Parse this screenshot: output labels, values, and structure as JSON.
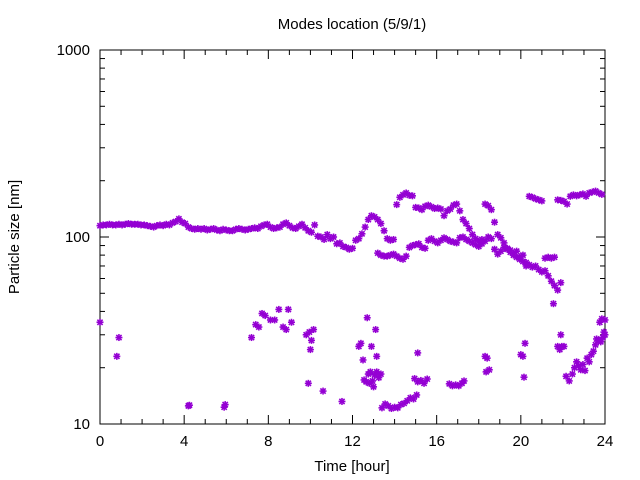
{
  "chart_data": {
    "type": "scatter",
    "title": "Modes location (5/9/1)",
    "xlabel": "Time [hour]",
    "ylabel": "Particle size [nm]",
    "xlim": [
      0,
      24
    ],
    "ylim": [
      10,
      1000
    ],
    "yscale": "log",
    "xticks": [
      0,
      4,
      8,
      12,
      16,
      20,
      24
    ],
    "yticks": [
      10,
      100,
      1000
    ],
    "grid": false,
    "marker_color": "#9400d3",
    "marker": "asterisk",
    "series": [
      {
        "points": [
          [
            0.0,
            115
          ],
          [
            0.15,
            116
          ],
          [
            0.3,
            116
          ],
          [
            0.45,
            117
          ],
          [
            0.6,
            116
          ],
          [
            0.75,
            116
          ],
          [
            0.9,
            117
          ],
          [
            1.05,
            116
          ],
          [
            1.2,
            117
          ],
          [
            1.35,
            118
          ],
          [
            1.5,
            117
          ],
          [
            1.65,
            117
          ],
          [
            1.8,
            117
          ],
          [
            1.95,
            116
          ],
          [
            2.1,
            116
          ],
          [
            2.25,
            115
          ],
          [
            2.4,
            114
          ],
          [
            2.55,
            113
          ],
          [
            2.7,
            115
          ],
          [
            2.85,
            116
          ],
          [
            3.0,
            115
          ],
          [
            3.15,
            117
          ],
          [
            3.3,
            116
          ],
          [
            3.45,
            119
          ],
          [
            3.6,
            121
          ],
          [
            3.75,
            125
          ],
          [
            3.9,
            120
          ],
          [
            4.05,
            118
          ],
          [
            4.2,
            113
          ],
          [
            4.35,
            111
          ],
          [
            4.5,
            110
          ],
          [
            4.65,
            111
          ],
          [
            4.8,
            110
          ],
          [
            4.95,
            111
          ],
          [
            5.1,
            109
          ],
          [
            5.25,
            110
          ],
          [
            5.4,
            111
          ],
          [
            5.55,
            109
          ],
          [
            5.7,
            108
          ],
          [
            5.85,
            110
          ],
          [
            6.0,
            109
          ],
          [
            6.15,
            108
          ],
          [
            6.3,
            108
          ],
          [
            6.45,
            110
          ],
          [
            6.6,
            111
          ],
          [
            6.75,
            110
          ],
          [
            6.9,
            109
          ],
          [
            7.05,
            110
          ],
          [
            7.2,
            111
          ],
          [
            7.35,
            112
          ],
          [
            7.5,
            111
          ],
          [
            7.65,
            114
          ],
          [
            7.8,
            116
          ],
          [
            7.95,
            117
          ],
          [
            8.1,
            113
          ],
          [
            8.25,
            111
          ],
          [
            8.4,
            112
          ],
          [
            8.55,
            113
          ],
          [
            8.7,
            117
          ],
          [
            8.85,
            119
          ],
          [
            9.0,
            115
          ],
          [
            9.15,
            112
          ],
          [
            9.3,
            111
          ],
          [
            9.45,
            114
          ],
          [
            9.6,
            117
          ],
          [
            9.75,
            112
          ],
          [
            9.9,
            108
          ],
          [
            10.05,
            106
          ],
          [
            10.2,
            116
          ],
          [
            10.35,
            101
          ],
          [
            10.5,
            100
          ],
          [
            10.65,
            97
          ],
          [
            10.8,
            103
          ],
          [
            10.95,
            98
          ],
          [
            11.1,
            100
          ],
          [
            11.25,
            92
          ],
          [
            11.4,
            93
          ],
          [
            11.55,
            89
          ],
          [
            11.7,
            88
          ],
          [
            11.85,
            86
          ],
          [
            12.0,
            87
          ],
          [
            12.15,
            96
          ],
          [
            12.3,
            98
          ],
          [
            12.45,
            104
          ],
          [
            12.6,
            113
          ],
          [
            12.75,
            124
          ],
          [
            12.9,
            130
          ],
          [
            13.05,
            128
          ],
          [
            13.2,
            124
          ],
          [
            13.35,
            118
          ],
          [
            13.5,
            108
          ],
          [
            13.65,
            98
          ],
          [
            13.8,
            96
          ],
          [
            13.95,
            97
          ],
          [
            14.1,
            149
          ],
          [
            14.25,
            163
          ],
          [
            14.4,
            168
          ],
          [
            14.55,
            172
          ],
          [
            14.7,
            167
          ],
          [
            14.85,
            166
          ],
          [
            15.0,
            144
          ],
          [
            15.15,
            143
          ],
          [
            15.3,
            140
          ],
          [
            15.45,
            146
          ],
          [
            15.6,
            148
          ],
          [
            15.75,
            145
          ],
          [
            15.9,
            142
          ],
          [
            16.05,
            143
          ],
          [
            16.2,
            141
          ],
          [
            16.35,
            130
          ],
          [
            16.5,
            138
          ],
          [
            16.65,
            141
          ],
          [
            16.8,
            148
          ],
          [
            16.95,
            150
          ],
          [
            17.1,
            138
          ],
          [
            17.25,
            124
          ],
          [
            17.4,
            118
          ],
          [
            17.55,
            111
          ],
          [
            17.7,
            103
          ],
          [
            17.85,
            98
          ],
          [
            18.0,
            95
          ],
          [
            18.15,
            97
          ],
          [
            18.3,
            150
          ],
          [
            18.45,
            147
          ],
          [
            18.6,
            140
          ],
          [
            18.75,
            120
          ],
          [
            18.9,
            103
          ],
          [
            19.05,
            99
          ],
          [
            19.2,
            93
          ],
          [
            19.35,
            86
          ],
          [
            19.5,
            83
          ],
          [
            19.65,
            82
          ],
          [
            19.8,
            84
          ],
          [
            19.95,
            78
          ],
          [
            20.1,
            74
          ],
          [
            20.25,
            70
          ],
          [
            20.4,
            165
          ],
          [
            20.55,
            163
          ],
          [
            20.7,
            160
          ],
          [
            20.85,
            158
          ],
          [
            21.0,
            156
          ],
          [
            21.15,
            77
          ],
          [
            21.3,
            78
          ],
          [
            21.45,
            77
          ],
          [
            21.6,
            78
          ],
          [
            21.75,
            158
          ],
          [
            21.9,
            157
          ],
          [
            22.05,
            155
          ],
          [
            22.2,
            150
          ],
          [
            22.35,
            165
          ],
          [
            22.5,
            168
          ],
          [
            22.65,
            166
          ],
          [
            22.8,
            168
          ],
          [
            22.95,
            170
          ],
          [
            23.1,
            165
          ],
          [
            23.25,
            172
          ],
          [
            23.4,
            174
          ],
          [
            23.55,
            176
          ],
          [
            23.7,
            172
          ],
          [
            23.85,
            169
          ],
          [
            13.2,
            82
          ],
          [
            13.35,
            80
          ],
          [
            13.5,
            79
          ],
          [
            13.65,
            79
          ],
          [
            13.8,
            80
          ],
          [
            13.95,
            81
          ],
          [
            14.1,
            79
          ],
          [
            14.25,
            77
          ],
          [
            14.4,
            76
          ],
          [
            14.55,
            79
          ],
          [
            14.7,
            88
          ],
          [
            14.85,
            90
          ],
          [
            15.0,
            91
          ],
          [
            15.15,
            92
          ],
          [
            15.3,
            88
          ],
          [
            15.45,
            87
          ],
          [
            15.6,
            96
          ],
          [
            15.75,
            98
          ],
          [
            15.9,
            95
          ],
          [
            16.05,
            93
          ],
          [
            16.2,
            96
          ],
          [
            16.35,
            99
          ],
          [
            16.5,
            97
          ],
          [
            16.65,
            95
          ],
          [
            16.8,
            94
          ],
          [
            16.95,
            93
          ],
          [
            17.1,
            99
          ],
          [
            17.25,
            100
          ],
          [
            17.4,
            97
          ],
          [
            17.55,
            95
          ],
          [
            17.7,
            93
          ],
          [
            17.85,
            91
          ],
          [
            18.0,
            89
          ],
          [
            18.15,
            92
          ],
          [
            18.3,
            95
          ],
          [
            18.45,
            100
          ],
          [
            18.6,
            98
          ],
          [
            18.75,
            86
          ],
          [
            18.9,
            81
          ],
          [
            19.05,
            84
          ],
          [
            19.2,
            88
          ],
          [
            19.35,
            87
          ],
          [
            19.5,
            85
          ],
          [
            19.65,
            80
          ],
          [
            19.8,
            78
          ],
          [
            19.95,
            76
          ],
          [
            20.1,
            80
          ],
          [
            20.25,
            73
          ],
          [
            20.4,
            71
          ],
          [
            20.55,
            69
          ],
          [
            20.7,
            70
          ],
          [
            20.85,
            67
          ],
          [
            21.0,
            65
          ],
          [
            21.15,
            66
          ],
          [
            21.3,
            62
          ],
          [
            21.45,
            58
          ],
          [
            21.6,
            55
          ],
          [
            21.75,
            52
          ],
          [
            21.9,
            57
          ],
          [
            0.0,
            35
          ],
          [
            0.9,
            29
          ],
          [
            0.8,
            23
          ],
          [
            4.2,
            12.5
          ],
          [
            4.25,
            12.6
          ],
          [
            5.9,
            12.3
          ],
          [
            5.95,
            12.7
          ],
          [
            7.2,
            29
          ],
          [
            7.4,
            34
          ],
          [
            7.55,
            33
          ],
          [
            7.7,
            39
          ],
          [
            7.85,
            38
          ],
          [
            8.1,
            36
          ],
          [
            8.3,
            36
          ],
          [
            8.5,
            41
          ],
          [
            8.7,
            33
          ],
          [
            8.85,
            32
          ],
          [
            8.95,
            41
          ],
          [
            9.1,
            35
          ],
          [
            9.8,
            30
          ],
          [
            9.95,
            31
          ],
          [
            10.05,
            28
          ],
          [
            10.15,
            32
          ],
          [
            9.9,
            16.5
          ],
          [
            10.0,
            25
          ],
          [
            10.6,
            15
          ],
          [
            11.5,
            13.2
          ],
          [
            12.3,
            26
          ],
          [
            12.4,
            27
          ],
          [
            12.5,
            22
          ],
          [
            12.7,
            37
          ],
          [
            12.9,
            26
          ],
          [
            13.1,
            32
          ],
          [
            13.15,
            23
          ],
          [
            12.55,
            17.2
          ],
          [
            12.65,
            16.8
          ],
          [
            12.75,
            18.5
          ],
          [
            12.85,
            19
          ],
          [
            12.95,
            17
          ],
          [
            13.05,
            18.3
          ],
          [
            13.15,
            19
          ],
          [
            13.25,
            17.7
          ],
          [
            13.35,
            18.5
          ],
          [
            12.8,
            16.5
          ],
          [
            13.0,
            15.8
          ],
          [
            13.4,
            12.2
          ],
          [
            13.55,
            12.8
          ],
          [
            13.7,
            12.5
          ],
          [
            13.85,
            12.1
          ],
          [
            14.0,
            12.3
          ],
          [
            14.15,
            12.2
          ],
          [
            14.3,
            12.7
          ],
          [
            14.45,
            12.9
          ],
          [
            14.6,
            13.3
          ],
          [
            14.75,
            13.8
          ],
          [
            14.9,
            13.6
          ],
          [
            15.05,
            14.3
          ],
          [
            14.95,
            17.5
          ],
          [
            15.1,
            16.8
          ],
          [
            15.25,
            17.1
          ],
          [
            15.4,
            16.5
          ],
          [
            15.55,
            17.4
          ],
          [
            15.1,
            24
          ],
          [
            16.6,
            16.4
          ],
          [
            16.75,
            16
          ],
          [
            16.9,
            16.2
          ],
          [
            17.05,
            16
          ],
          [
            17.2,
            16.5
          ],
          [
            17.3,
            17
          ],
          [
            18.3,
            23
          ],
          [
            18.4,
            22.5
          ],
          [
            18.35,
            19
          ],
          [
            18.5,
            19.5
          ],
          [
            20.0,
            23.5
          ],
          [
            20.1,
            23
          ],
          [
            20.2,
            27
          ],
          [
            20.15,
            17.8
          ],
          [
            21.55,
            44
          ],
          [
            21.75,
            26
          ],
          [
            21.85,
            25
          ],
          [
            21.95,
            26
          ],
          [
            21.9,
            30
          ],
          [
            22.05,
            26
          ],
          [
            22.15,
            18
          ],
          [
            22.3,
            17
          ],
          [
            22.45,
            18.5
          ],
          [
            22.55,
            20
          ],
          [
            22.65,
            21.5
          ],
          [
            22.75,
            20.5
          ],
          [
            22.85,
            19.5
          ],
          [
            22.95,
            20.8
          ],
          [
            23.05,
            19.3
          ],
          [
            23.15,
            22.5
          ],
          [
            23.25,
            21.5
          ],
          [
            23.35,
            23.5
          ],
          [
            23.45,
            24.5
          ],
          [
            23.55,
            26.5
          ],
          [
            23.6,
            28.5
          ],
          [
            23.7,
            28
          ],
          [
            23.8,
            27.5
          ],
          [
            23.9,
            29
          ],
          [
            23.95,
            31
          ],
          [
            24.0,
            30
          ],
          [
            23.75,
            35
          ],
          [
            23.85,
            36.5
          ],
          [
            24.0,
            36
          ]
        ]
      }
    ]
  }
}
